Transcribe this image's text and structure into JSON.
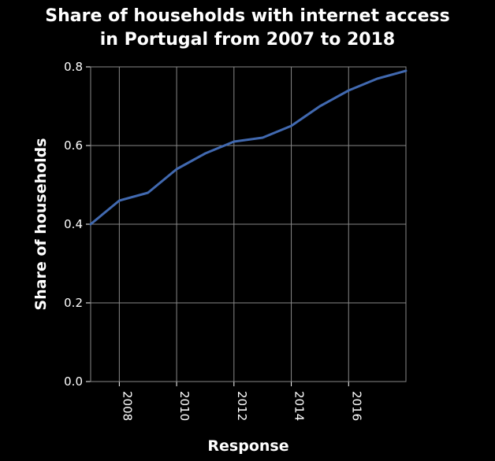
{
  "chart_data": {
    "type": "line",
    "title_lines": [
      "Share of households with internet access",
      "in Portugal from 2007 to 2018"
    ],
    "xlabel": "Response",
    "ylabel": "Share of households",
    "xlim": [
      2007,
      2018
    ],
    "ylim": [
      0,
      0.8
    ],
    "xticks": [
      2008,
      2010,
      2012,
      2014,
      2016
    ],
    "yticks": [
      0.0,
      0.2,
      0.4,
      0.6,
      0.8
    ],
    "ytick_labels": [
      "0.0",
      "0.2",
      "0.4",
      "0.6",
      "0.8"
    ],
    "grid": true,
    "series": [
      {
        "color": "#4169b0",
        "x": [
          2007,
          2008,
          2009,
          2010,
          2011,
          2012,
          2013,
          2014,
          2015,
          2016,
          2017,
          2018
        ],
        "values": [
          0.4,
          0.46,
          0.48,
          0.54,
          0.58,
          0.61,
          0.62,
          0.65,
          0.7,
          0.74,
          0.77,
          0.79
        ]
      }
    ],
    "colors": {
      "background": "#000000",
      "text": "#ffffff",
      "grid": "#888888",
      "axis": "#ffffff"
    }
  }
}
